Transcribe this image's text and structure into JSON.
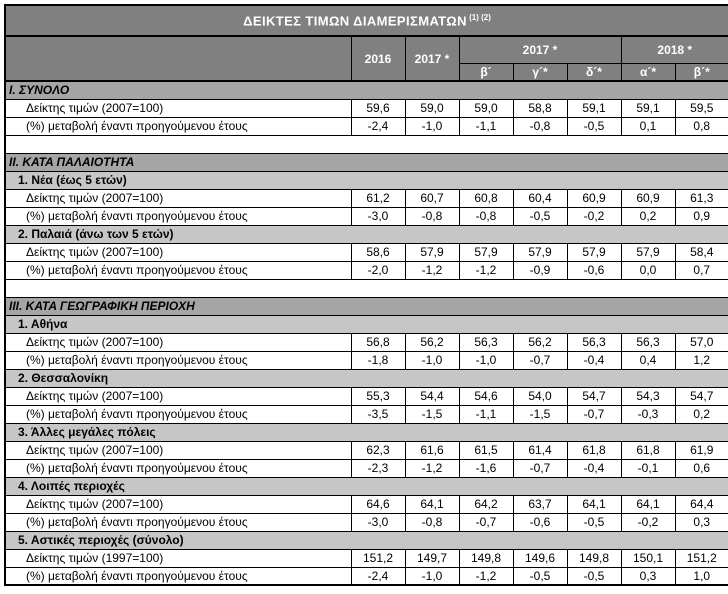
{
  "title": {
    "text": "ΔΕΙΚΤΕΣ ΤΙΜΩΝ ΔΙΑΜΕΡΙΣΜΑΤΩΝ",
    "superscript": " (1) (2)"
  },
  "header": {
    "col_2016": "2016",
    "col_2017": "2017 *",
    "group_2017": "2017 *",
    "group_2018": "2018 *",
    "subcols": [
      "β´",
      "γ´*",
      "δ´*",
      "α´*",
      "β´*"
    ]
  },
  "colors": {
    "header_bg": "#808080",
    "section_bg": "#a5a5a5",
    "subsection_bg": "#c6c6c6",
    "header_text": "#ffffff",
    "body_text": "#000000",
    "border": "#000000"
  },
  "rows": [
    {
      "type": "section",
      "label": "Ι. ΣΥΝΟΛΟ"
    },
    {
      "type": "data",
      "label": "Δείκτης τιμών (2007=100)",
      "values": [
        "59,6",
        "59,0",
        "59,0",
        "58,8",
        "59,1",
        "59,1",
        "59,5"
      ]
    },
    {
      "type": "data",
      "label": "(%) μεταβολή έναντι προηγούμενου έτους",
      "values": [
        "-2,4",
        "-1,0",
        "-1,1",
        "-0,8",
        "-0,5",
        "0,1",
        "0,8"
      ]
    },
    {
      "type": "spacer"
    },
    {
      "type": "section",
      "label": "ΙΙ. ΚΑΤΑ ΠΑΛΑΙΟΤΗΤΑ"
    },
    {
      "type": "subsection",
      "label": "1.  Νέα (έως 5 ετών)"
    },
    {
      "type": "data",
      "label": "Δείκτης τιμών (2007=100)",
      "values": [
        "61,2",
        "60,7",
        "60,8",
        "60,4",
        "60,9",
        "60,9",
        "61,3"
      ]
    },
    {
      "type": "data",
      "label": "(%) μεταβολή έναντι προηγούμενου έτους",
      "values": [
        "-3,0",
        "-0,8",
        "-0,8",
        "-0,5",
        "-0,2",
        "0,2",
        "0,9"
      ]
    },
    {
      "type": "subsection",
      "label": "2.  Παλαιά (άνω των 5 ετών)"
    },
    {
      "type": "data",
      "label": "Δείκτης τιμών (2007=100)",
      "values": [
        "58,6",
        "57,9",
        "57,9",
        "57,9",
        "57,9",
        "57,9",
        "58,4"
      ]
    },
    {
      "type": "data",
      "label": "(%) μεταβολή έναντι προηγούμενου έτους",
      "values": [
        "-2,0",
        "-1,2",
        "-1,2",
        "-0,9",
        "-0,6",
        "0,0",
        "0,7"
      ]
    },
    {
      "type": "spacer"
    },
    {
      "type": "section",
      "label": "ΙΙΙ. ΚΑΤΑ ΓΕΩΓΡΑΦΙΚΗ ΠΕΡΙΟΧΗ"
    },
    {
      "type": "subsection",
      "label": "1.  Αθήνα"
    },
    {
      "type": "data",
      "label": "Δείκτης τιμών (2007=100)",
      "values": [
        "56,8",
        "56,2",
        "56,3",
        "56,2",
        "56,3",
        "56,3",
        "57,0"
      ]
    },
    {
      "type": "data",
      "label": "(%) μεταβολή έναντι προηγούμενου έτους",
      "values": [
        "-1,8",
        "-1,0",
        "-1,0",
        "-0,7",
        "-0,4",
        "0,4",
        "1,2"
      ]
    },
    {
      "type": "subsection",
      "label": "2.  Θεσσαλονίκη"
    },
    {
      "type": "data",
      "label": "Δείκτης τιμών (2007=100)",
      "values": [
        "55,3",
        "54,4",
        "54,6",
        "54,0",
        "54,7",
        "54,3",
        "54,7"
      ]
    },
    {
      "type": "data",
      "label": "(%) μεταβολή έναντι προηγούμενου έτους",
      "values": [
        "-3,5",
        "-1,5",
        "-1,1",
        "-1,5",
        "-0,7",
        "-0,3",
        "0,2"
      ]
    },
    {
      "type": "subsection",
      "label": "3.  Άλλες μεγάλες πόλεις"
    },
    {
      "type": "data",
      "label": "Δείκτης τιμών (2007=100)",
      "values": [
        "62,3",
        "61,6",
        "61,5",
        "61,4",
        "61,8",
        "61,8",
        "61,9"
      ]
    },
    {
      "type": "data",
      "label": "(%) μεταβολή έναντι προηγούμενου έτους",
      "values": [
        "-2,3",
        "-1,2",
        "-1,6",
        "-0,7",
        "-0,4",
        "-0,1",
        "0,6"
      ]
    },
    {
      "type": "subsection",
      "label": "4.  Λοιπές περιοχές"
    },
    {
      "type": "data",
      "label": "Δείκτης τιμών (2007=100)",
      "values": [
        "64,6",
        "64,1",
        "64,2",
        "63,7",
        "64,1",
        "64,1",
        "64,4"
      ]
    },
    {
      "type": "data",
      "label": "(%) μεταβολή έναντι προηγούμενου έτους",
      "values": [
        "-3,0",
        "-0,8",
        "-0,7",
        "-0,6",
        "-0,5",
        "-0,2",
        "0,3"
      ]
    },
    {
      "type": "subsection",
      "label": "5.  Αστικές περιοχές (σύνολο)"
    },
    {
      "type": "data",
      "label": "Δείκτης τιμών (1997=100)",
      "values": [
        "151,2",
        "149,7",
        "149,8",
        "149,6",
        "149,8",
        "150,1",
        "151,2"
      ]
    },
    {
      "type": "data",
      "label": "(%) μεταβολή έναντι προηγούμενου έτους",
      "values": [
        "-2,4",
        "-1,0",
        "-1,2",
        "-0,5",
        "-0,5",
        "0,3",
        "1,0"
      ]
    }
  ]
}
